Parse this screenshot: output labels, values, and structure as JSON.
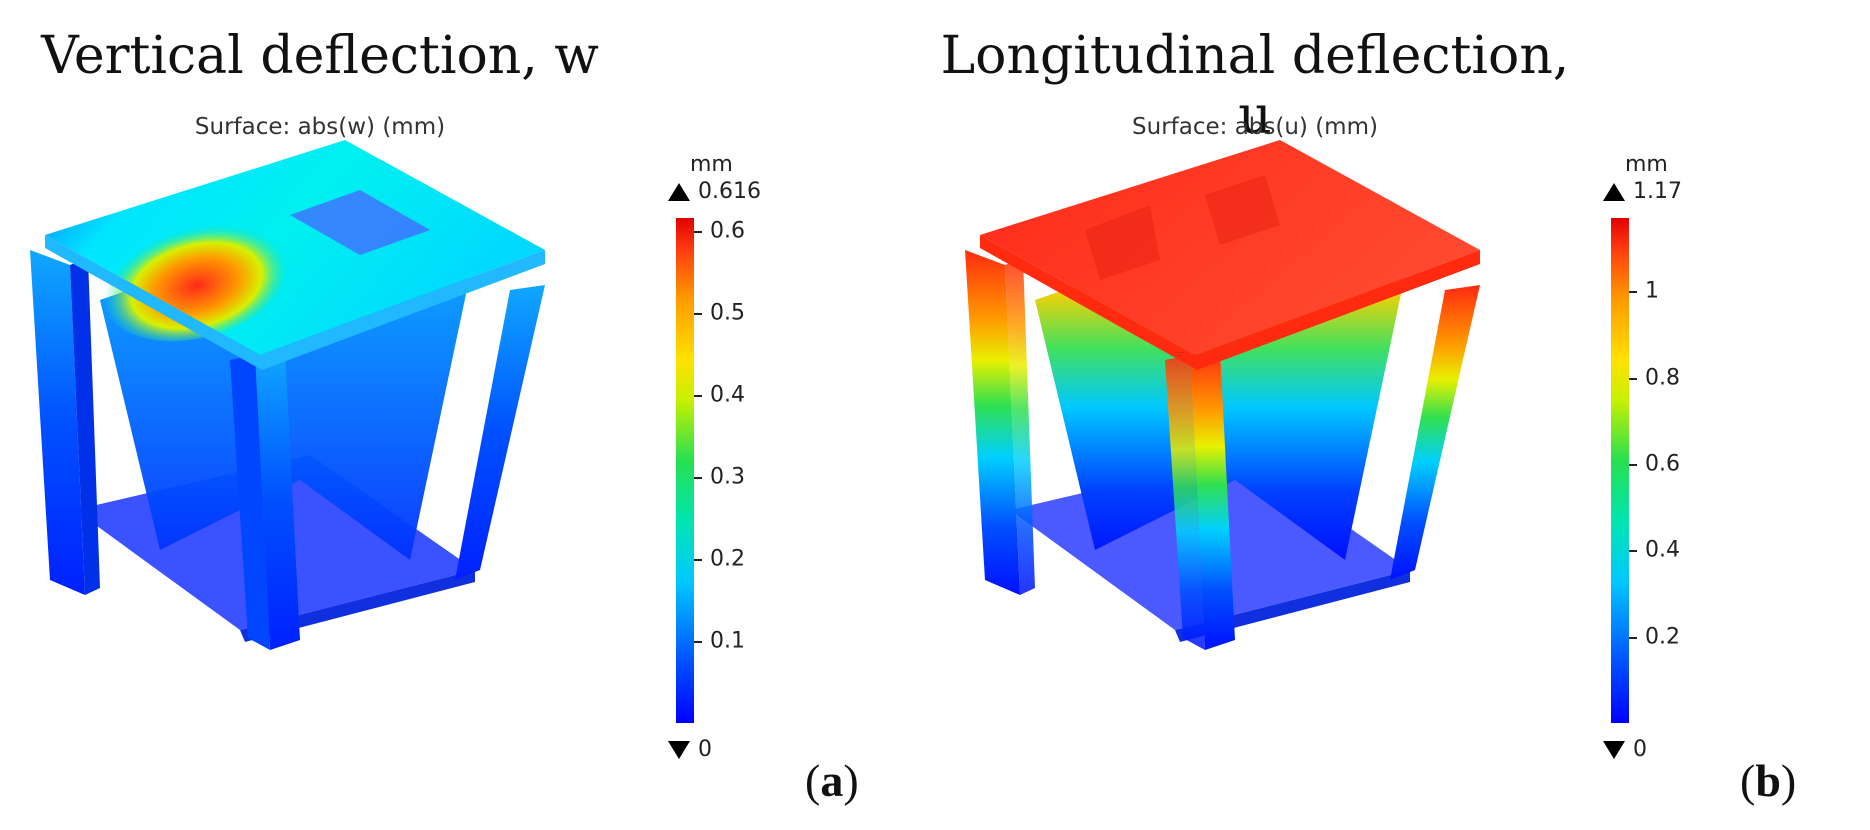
{
  "panels": [
    {
      "title": "Vertical deflection, w",
      "subtitle": "Surface: abs(w) (mm)",
      "colorbar": {
        "unit": "mm",
        "max_label": "0.616",
        "min_label": "0",
        "max_value": 0.616,
        "ticks": [
          "0.6",
          "0.5",
          "0.4",
          "0.3",
          "0.2",
          "0.1"
        ],
        "tick_values": [
          0.6,
          0.5,
          0.4,
          0.3,
          0.2,
          0.1
        ]
      },
      "label_letter": "a"
    },
    {
      "title": "Longitudinal deflection, u",
      "subtitle": "Surface: abs(u) (mm)",
      "colorbar": {
        "unit": "mm",
        "max_label": "1.17",
        "min_label": "0",
        "max_value": 1.17,
        "ticks": [
          "1",
          "0.8",
          "0.6",
          "0.4",
          "0.2"
        ],
        "tick_values": [
          1,
          0.8,
          0.6,
          0.4,
          0.2
        ]
      },
      "label_letter": "b"
    }
  ],
  "colors": {
    "low": "#0000ff",
    "mid": "#00e0ff",
    "high": "#ff2a1a"
  }
}
